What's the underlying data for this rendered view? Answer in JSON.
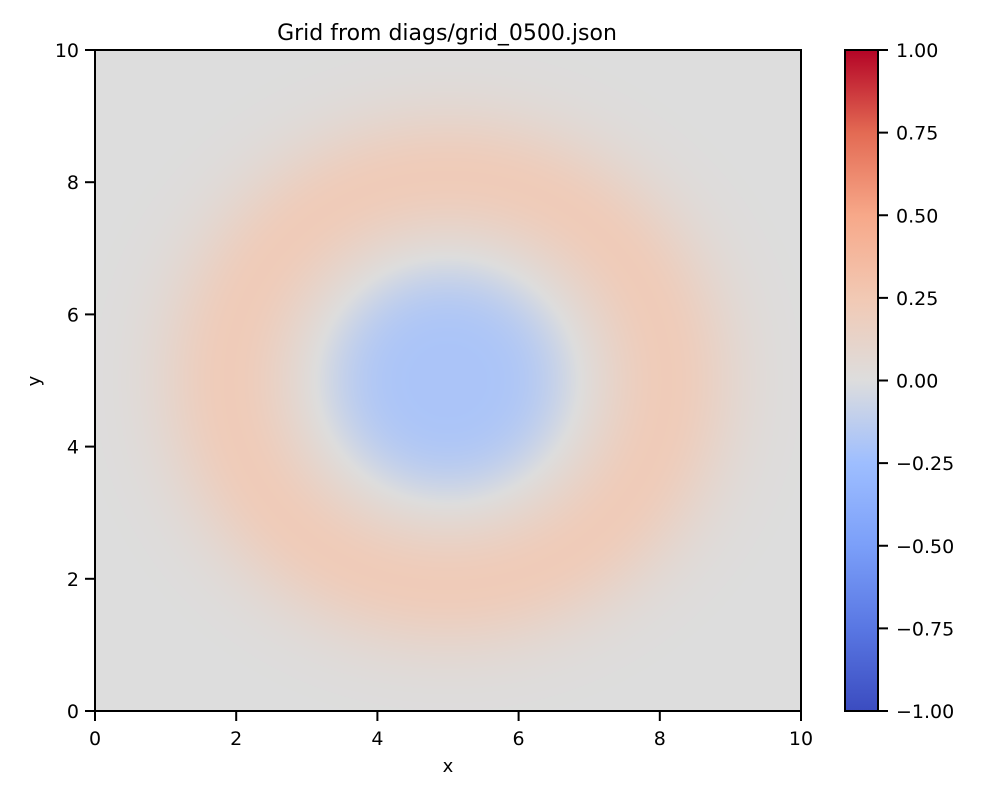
{
  "chart_data": {
    "type": "heatmap",
    "title": "Grid from diags/grid_0500.json",
    "xlabel": "x",
    "ylabel": "y",
    "xlim": [
      0,
      10
    ],
    "ylim": [
      0,
      10
    ],
    "x_ticks": [
      "0",
      "2",
      "4",
      "6",
      "8",
      "10"
    ],
    "y_ticks": [
      "0",
      "2",
      "4",
      "6",
      "8",
      "10"
    ],
    "grid": false,
    "colormap": "coolwarm",
    "colorbar": {
      "vmin": -1.0,
      "vmax": 1.0,
      "placement": "right",
      "ticks": [
        {
          "value": 1.0,
          "label": "1.00"
        },
        {
          "value": 0.75,
          "label": "0.75"
        },
        {
          "value": 0.5,
          "label": "0.50"
        },
        {
          "value": 0.25,
          "label": "0.25"
        },
        {
          "value": 0.0,
          "label": "0.00"
        },
        {
          "value": -0.25,
          "label": "−0.25"
        },
        {
          "value": -0.5,
          "label": "−0.50"
        },
        {
          "value": -0.75,
          "label": "−0.75"
        },
        {
          "value": -1.0,
          "label": "−1.00"
        }
      ]
    },
    "field": {
      "center": [
        5,
        5
      ],
      "inner_value": -0.2,
      "inner_radius": 1.7,
      "ring_value": 0.22,
      "ring_radius": 3.1,
      "ring_width": 1.0,
      "background_value": 0.0
    }
  }
}
